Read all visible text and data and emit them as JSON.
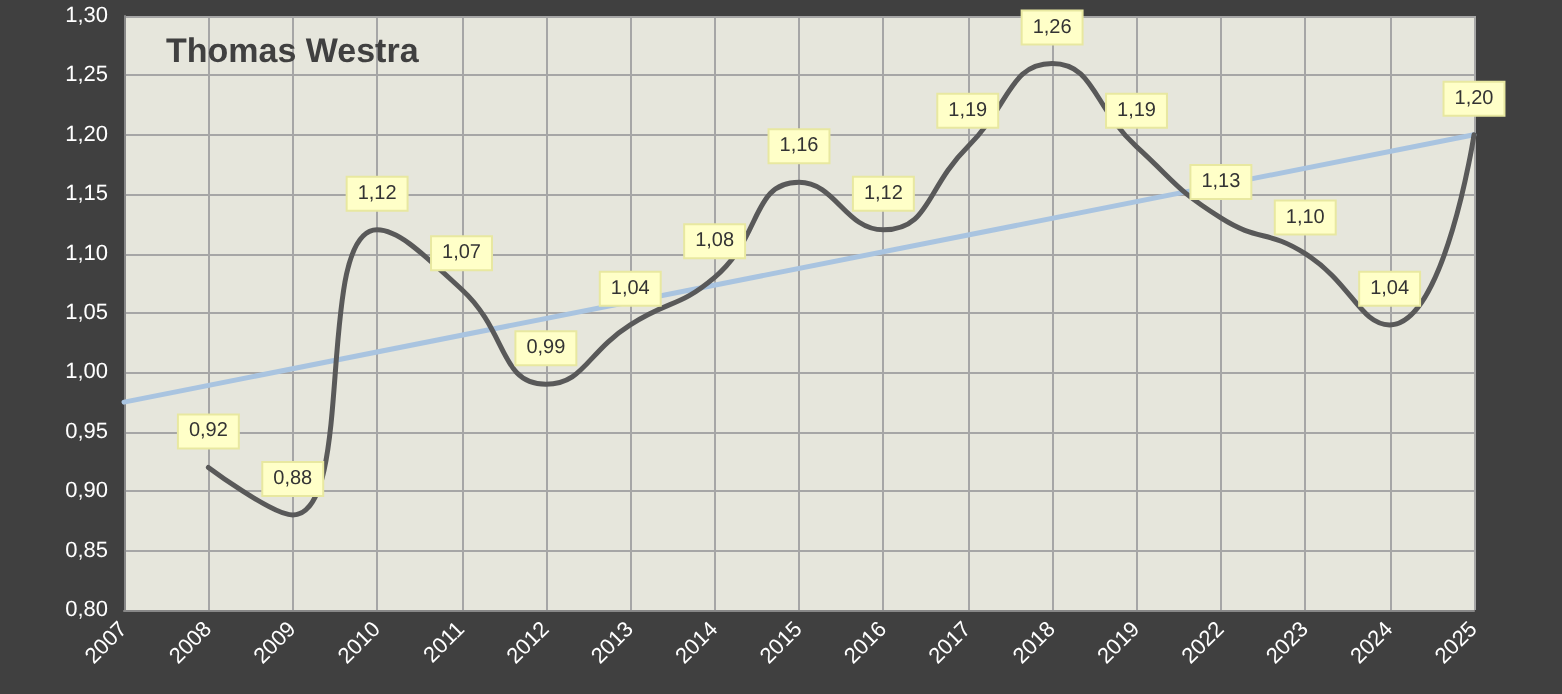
{
  "chart_data": {
    "type": "line",
    "title": "Thomas Westra",
    "categories": [
      "2007",
      "2008",
      "2009",
      "2010",
      "2011",
      "2012",
      "2013",
      "2014",
      "2015",
      "2016",
      "2017",
      "2018",
      "2019",
      "2022",
      "2023",
      "2024",
      "2025"
    ],
    "series": [
      {
        "color": "#595959",
        "values": [
          null,
          0.92,
          0.88,
          1.12,
          1.07,
          0.99,
          1.04,
          1.08,
          1.16,
          1.12,
          1.19,
          1.26,
          1.19,
          1.13,
          1.1,
          1.04,
          1.2
        ],
        "value_labels": [
          null,
          "0,92",
          "0,88",
          "1,12",
          "1,07",
          "0,99",
          "1,04",
          "1,08",
          "1,16",
          "1,12",
          "1,19",
          "1,26",
          "1,19",
          "1,13",
          "1,10",
          "1,04",
          "1,20"
        ]
      },
      {
        "color": "#a9c4e0",
        "values": [
          0.975,
          null,
          null,
          null,
          null,
          null,
          null,
          null,
          null,
          null,
          null,
          null,
          null,
          null,
          null,
          null,
          1.2
        ]
      }
    ],
    "ylim": [
      0.8,
      1.3
    ],
    "yticks": [
      {
        "value": 0.8,
        "label": "0,80"
      },
      {
        "value": 0.85,
        "label": "0,85"
      },
      {
        "value": 0.9,
        "label": "0,90"
      },
      {
        "value": 0.95,
        "label": "0,95"
      },
      {
        "value": 1.0,
        "label": "1,00"
      },
      {
        "value": 1.05,
        "label": "1,05"
      },
      {
        "value": 1.1,
        "label": "1,10"
      },
      {
        "value": 1.15,
        "label": "1,15"
      },
      {
        "value": 1.2,
        "label": "1,20"
      },
      {
        "value": 1.25,
        "label": "1,25"
      },
      {
        "value": 1.3,
        "label": "1,30"
      }
    ],
    "grid": true,
    "marker": "none",
    "line_style": "solid"
  }
}
